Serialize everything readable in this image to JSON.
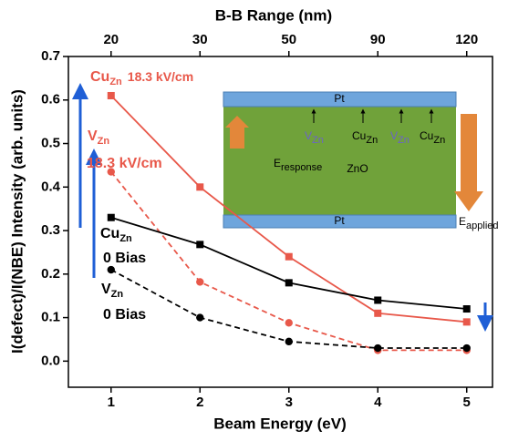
{
  "chart_data": {
    "type": "line",
    "xlabel": "Beam Energy (eV)",
    "ylabel": "I(defect)/I(NBE) Intensity (arb. units)",
    "x": [
      1,
      2,
      3,
      4,
      5
    ],
    "xlim": [
      0.52,
      5.29
    ],
    "xticks": [
      1,
      2,
      3,
      4,
      5
    ],
    "ylim": [
      -0.06,
      0.7
    ],
    "yticks": [
      {
        "value": 0,
        "label": "0.0"
      },
      0.1,
      0.2,
      0.3,
      0.4,
      0.5,
      0.6,
      0.7
    ],
    "top_axis": {
      "label": "B-B Range (nm)",
      "ticks": [
        20,
        30,
        50,
        90,
        120
      ],
      "positions": [
        1,
        2,
        3,
        4,
        5
      ]
    },
    "series": [
      {
        "name": "Cu",
        "name_sub": "Zn",
        "name_rest": "18.3 kV/cm",
        "color": "#e8584a",
        "marker": "square",
        "dashed": false,
        "values": [
          0.61,
          0.4,
          0.24,
          0.11,
          0.09
        ]
      },
      {
        "name": "V",
        "name_sub": "Zn",
        "name_rest": "18.3 kV/cm",
        "color": "#e8584a",
        "marker": "circle",
        "dashed": true,
        "values": [
          0.435,
          0.182,
          0.088,
          0.025,
          0.025
        ]
      },
      {
        "name": "Cu",
        "name_sub": "Zn",
        "name_rest": "0 Bias",
        "color": "#000000",
        "marker": "square",
        "dashed": false,
        "values": [
          0.33,
          0.268,
          0.18,
          0.14,
          0.12
        ]
      },
      {
        "name": "V",
        "name_sub": "Zn",
        "name_rest": "0 Bias",
        "color": "#000000",
        "marker": "circle",
        "dashed": true,
        "values": [
          0.21,
          0.1,
          0.045,
          0.03,
          0.03
        ]
      }
    ]
  },
  "inset": {
    "top_electrode": "Pt",
    "bottom_electrode": "Pt",
    "layer": "ZnO",
    "defects": [
      {
        "main": "V",
        "sub": "Zn"
      },
      {
        "main": "Cu",
        "sub": "Zn"
      },
      {
        "main": "V",
        "sub": "Zn"
      },
      {
        "main": "Cu",
        "sub": "Zn"
      }
    ],
    "response": {
      "main": "E",
      "sub": "response"
    },
    "applied": {
      "main": "E",
      "sub": "applied"
    }
  }
}
